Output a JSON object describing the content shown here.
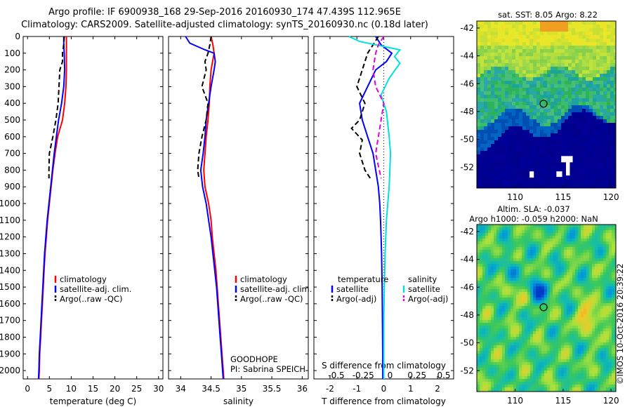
{
  "header": {
    "title_line1": "Argo profile: IF 6900938_168 29-Sep-2016 20160930_174 47.439S 112.965E",
    "title_line2": "Climatology: CARS2009. Satellite-adjusted climatology: synTS_20160930.nc (0.18d later)"
  },
  "colors": {
    "climatology": "#ff0000",
    "satellite": "#0000ff",
    "argo": "#000000",
    "salinity_satellite": "#00e0e0",
    "salinity_argo": "#e000e0"
  },
  "chart_data": [
    {
      "type": "line",
      "panel": "temperature",
      "xlabel": "temperature (deg C)",
      "ylabel": "",
      "xlim": [
        -1,
        31
      ],
      "ylim": [
        2050,
        0
      ],
      "xticks": [
        0,
        5,
        10,
        15,
        20,
        25,
        30
      ],
      "yticks": [
        0,
        100,
        200,
        300,
        400,
        500,
        600,
        700,
        800,
        900,
        1000,
        1100,
        1200,
        1300,
        1400,
        1500,
        1600,
        1700,
        1800,
        1900,
        2000
      ],
      "legend": [
        "climatology",
        "satellite-adj. clim.",
        "Argo(..raw -QC)"
      ],
      "series": [
        {
          "name": "climatology",
          "points": [
            [
              8.9,
              0
            ],
            [
              8.9,
              50
            ],
            [
              8.9,
              100
            ],
            [
              8.9,
              200
            ],
            [
              8.8,
              300
            ],
            [
              8.5,
              400
            ],
            [
              8.0,
              500
            ],
            [
              6.9,
              600
            ],
            [
              6.3,
              700
            ],
            [
              5.8,
              800
            ],
            [
              5.4,
              900
            ],
            [
              5.0,
              1000
            ],
            [
              4.6,
              1100
            ],
            [
              4.3,
              1200
            ],
            [
              4.0,
              1300
            ],
            [
              3.8,
              1400
            ],
            [
              3.6,
              1500
            ],
            [
              3.4,
              1600
            ],
            [
              3.2,
              1700
            ],
            [
              3.0,
              1800
            ],
            [
              2.8,
              1900
            ],
            [
              2.7,
              2000
            ],
            [
              2.6,
              2050
            ]
          ]
        },
        {
          "name": "satellite-adj. clim.",
          "points": [
            [
              8.3,
              0
            ],
            [
              8.3,
              50
            ],
            [
              8.4,
              100
            ],
            [
              8.5,
              200
            ],
            [
              8.3,
              300
            ],
            [
              7.8,
              400
            ],
            [
              7.1,
              500
            ],
            [
              6.6,
              600
            ],
            [
              6.1,
              700
            ],
            [
              5.7,
              800
            ],
            [
              5.3,
              900
            ],
            [
              4.9,
              1000
            ],
            [
              4.5,
              1100
            ],
            [
              4.2,
              1200
            ],
            [
              3.9,
              1300
            ],
            [
              3.7,
              1400
            ],
            [
              3.5,
              1500
            ],
            [
              3.3,
              1600
            ],
            [
              3.1,
              1700
            ],
            [
              2.9,
              1800
            ],
            [
              2.7,
              1900
            ],
            [
              2.6,
              2000
            ],
            [
              2.5,
              2050
            ]
          ]
        },
        {
          "name": "Argo(..raw -QC)",
          "points": [
            [
              8.4,
              0
            ],
            [
              8.3,
              50
            ],
            [
              8.0,
              100
            ],
            [
              8.0,
              150
            ],
            [
              7.4,
              200
            ],
            [
              7.2,
              300
            ],
            [
              7.0,
              400
            ],
            [
              6.5,
              500
            ],
            [
              5.8,
              600
            ],
            [
              5.0,
              700
            ],
            [
              4.9,
              800
            ],
            [
              4.9,
              850
            ]
          ]
        }
      ],
      "annotations": []
    },
    {
      "type": "line",
      "panel": "salinity",
      "xlabel": "salinity",
      "ylabel": "",
      "xlim": [
        33.8,
        36.1
      ],
      "ylim": [
        2050,
        0
      ],
      "xticks": [
        34,
        34.5,
        35,
        35.5,
        36
      ],
      "legend": [
        "climatology",
        "satellite-adj. clim.",
        "Argo(..raw -QC)"
      ],
      "series": [
        {
          "name": "climatology",
          "points": [
            [
              34.5,
              0
            ],
            [
              34.53,
              50
            ],
            [
              34.55,
              100
            ],
            [
              34.5,
              200
            ],
            [
              34.48,
              300
            ],
            [
              34.47,
              400
            ],
            [
              34.45,
              500
            ],
            [
              34.42,
              600
            ],
            [
              34.4,
              700
            ],
            [
              34.38,
              800
            ],
            [
              34.4,
              900
            ],
            [
              34.46,
              1000
            ],
            [
              34.5,
              1100
            ],
            [
              34.52,
              1200
            ],
            [
              34.55,
              1300
            ],
            [
              34.58,
              1400
            ],
            [
              34.6,
              1500
            ],
            [
              34.62,
              1600
            ],
            [
              34.64,
              1700
            ],
            [
              34.66,
              1800
            ],
            [
              34.68,
              1900
            ],
            [
              34.7,
              2000
            ],
            [
              34.71,
              2050
            ]
          ]
        },
        {
          "name": "satellite-adj. clim.",
          "points": [
            [
              34.08,
              0
            ],
            [
              34.15,
              40
            ],
            [
              34.4,
              80
            ],
            [
              34.55,
              100
            ],
            [
              34.57,
              150
            ],
            [
              34.55,
              200
            ],
            [
              34.5,
              300
            ],
            [
              34.46,
              400
            ],
            [
              34.42,
              500
            ],
            [
              34.4,
              600
            ],
            [
              34.37,
              700
            ],
            [
              34.33,
              800
            ],
            [
              34.36,
              900
            ],
            [
              34.42,
              1000
            ],
            [
              34.46,
              1100
            ],
            [
              34.5,
              1200
            ],
            [
              34.53,
              1300
            ],
            [
              34.56,
              1400
            ],
            [
              34.59,
              1500
            ],
            [
              34.61,
              1600
            ],
            [
              34.63,
              1700
            ],
            [
              34.65,
              1800
            ],
            [
              34.67,
              1900
            ],
            [
              34.69,
              2000
            ],
            [
              34.7,
              2050
            ]
          ]
        },
        {
          "name": "Argo(..raw -QC)",
          "points": [
            [
              34.5,
              0
            ],
            [
              34.48,
              50
            ],
            [
              34.45,
              100
            ],
            [
              34.4,
              150
            ],
            [
              34.42,
              200
            ],
            [
              34.35,
              300
            ],
            [
              34.4,
              350
            ],
            [
              34.45,
              400
            ],
            [
              34.42,
              500
            ],
            [
              34.35,
              600
            ],
            [
              34.3,
              700
            ],
            [
              34.28,
              800
            ],
            [
              34.3,
              850
            ]
          ]
        }
      ],
      "annotations": [
        "GOODHOPE",
        "PI: Sabrina SPEICH"
      ]
    },
    {
      "type": "line",
      "panel": "difference",
      "xlabel": "T difference from climatology",
      "xlabel_top": "S difference from climatology",
      "xlim": [
        -2.6,
        2.6
      ],
      "ylim": [
        2050,
        0
      ],
      "xticks": [
        -2,
        -1,
        0,
        1,
        2
      ],
      "top_xticks": [
        "-0.5",
        "-0.25",
        "0",
        "0.25",
        "0.5"
      ],
      "legend": [
        "temperature",
        "satellite",
        "Argo(-adj)",
        "salinity",
        "satellite",
        "Argo(-adj)"
      ],
      "series": [
        {
          "name": "temperature satellite",
          "points": [
            [
              -0.3,
              0
            ],
            [
              -0.1,
              50
            ],
            [
              0.3,
              100
            ],
            [
              0.1,
              150
            ],
            [
              -0.3,
              200
            ],
            [
              -0.6,
              300
            ],
            [
              -0.9,
              400
            ],
            [
              -0.8,
              500
            ],
            [
              -0.6,
              600
            ],
            [
              -0.4,
              700
            ],
            [
              -0.3,
              800
            ],
            [
              -0.2,
              900
            ],
            [
              -0.15,
              1000
            ],
            [
              -0.12,
              1100
            ],
            [
              -0.1,
              1200
            ],
            [
              -0.08,
              1300
            ],
            [
              -0.06,
              1500
            ],
            [
              -0.05,
              1700
            ],
            [
              -0.04,
              1900
            ],
            [
              -0.04,
              2050
            ]
          ]
        },
        {
          "name": "temperature Argo(-adj)",
          "points": [
            [
              -0.2,
              0
            ],
            [
              -0.4,
              50
            ],
            [
              -0.6,
              100
            ],
            [
              -0.8,
              200
            ],
            [
              -1.0,
              300
            ],
            [
              -0.7,
              400
            ],
            [
              -0.9,
              500
            ],
            [
              -1.2,
              550
            ],
            [
              -0.8,
              620
            ],
            [
              -0.9,
              700
            ],
            [
              -0.7,
              800
            ],
            [
              -0.5,
              850
            ]
          ]
        },
        {
          "name": "salinity satellite",
          "points": [
            [
              -1.3,
              0
            ],
            [
              -0.9,
              30
            ],
            [
              0.6,
              80
            ],
            [
              0.4,
              120
            ],
            [
              0.6,
              160
            ],
            [
              0.2,
              250
            ],
            [
              -0.1,
              350
            ],
            [
              0.1,
              450
            ],
            [
              0.2,
              600
            ],
            [
              0.25,
              700
            ],
            [
              0.2,
              900
            ],
            [
              0.1,
              1100
            ],
            [
              0.05,
              1300
            ],
            [
              0.02,
              1500
            ],
            [
              0.0,
              1700
            ],
            [
              0.0,
              2050
            ]
          ]
        },
        {
          "name": "salinity Argo(-adj)",
          "points": [
            [
              0.0,
              0
            ],
            [
              -0.2,
              50
            ],
            [
              -0.3,
              100
            ],
            [
              -0.4,
              200
            ],
            [
              -0.3,
              300
            ],
            [
              0.0,
              400
            ],
            [
              -0.1,
              500
            ],
            [
              -0.2,
              600
            ],
            [
              -0.3,
              700
            ],
            [
              -0.1,
              850
            ]
          ]
        }
      ]
    },
    {
      "type": "heatmap",
      "panel": "sst_map",
      "title": "sat. SST: 8.05 Argo: 8.22",
      "xticks": [
        110,
        115,
        120
      ],
      "yticks": [
        -42,
        -44,
        -46,
        -48,
        -50,
        -52
      ],
      "xlim": [
        106,
        120.5
      ],
      "ylim": [
        -53.5,
        -41.5
      ],
      "argo_marker": [
        112.965,
        -47.439
      ]
    },
    {
      "type": "heatmap",
      "panel": "sla_map",
      "title_line1": "Altim. SLA: -0.037",
      "title_line2": "Argo h1000: -0.059 h2000: NaN",
      "xticks": [
        110,
        115,
        120
      ],
      "yticks": [
        -42,
        -44,
        -46,
        -48,
        -50,
        -52
      ],
      "xlim": [
        106,
        120.5
      ],
      "ylim": [
        -53.5,
        -41.5
      ],
      "argo_marker": [
        112.965,
        -47.439
      ]
    }
  ],
  "watermark": "©IMOS 10-Oct-2016 20:39:22"
}
